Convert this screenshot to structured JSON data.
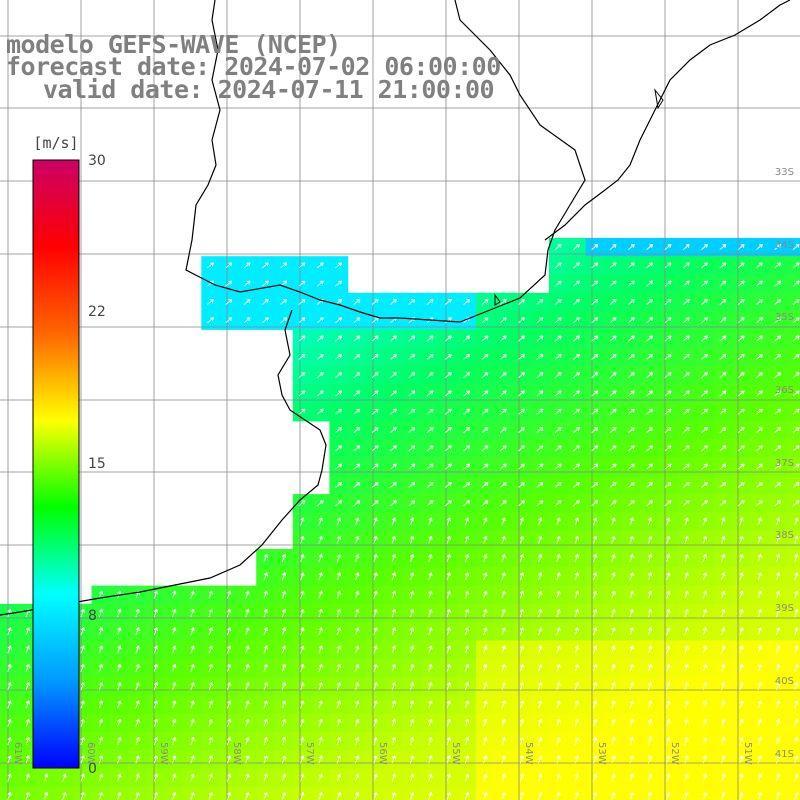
{
  "header": {
    "line1": "modelo GEFS-WAVE (NCEP)",
    "line2": "forecast date: 2024-07-02 06:00:00",
    "line3": "valid date: 2024-07-11 21:00:00"
  },
  "colorbar": {
    "unit": "[m/s]",
    "ticks": [
      "30",
      "22",
      "15",
      "8",
      "0"
    ],
    "range": [
      0,
      30
    ],
    "colors": [
      "#0000ff",
      "#0099ff",
      "#00ffff",
      "#00ff00",
      "#ffff00",
      "#ff6600",
      "#ff0000",
      "#cc0066"
    ]
  },
  "grid": {
    "lat_labels": [
      "33S",
      "34S",
      "35S",
      "36S",
      "37S",
      "38S",
      "39S",
      "40S",
      "41S"
    ],
    "lon_labels": [
      "61W",
      "60W",
      "59W",
      "58W",
      "57W",
      "56W",
      "55W",
      "54W",
      "53W",
      "52W",
      "51W"
    ]
  },
  "colors": {
    "land": "#ffffff",
    "coast": "#000000",
    "grid": "#888888",
    "arrows": "#ffffff",
    "label": "#8a8a8a"
  }
}
